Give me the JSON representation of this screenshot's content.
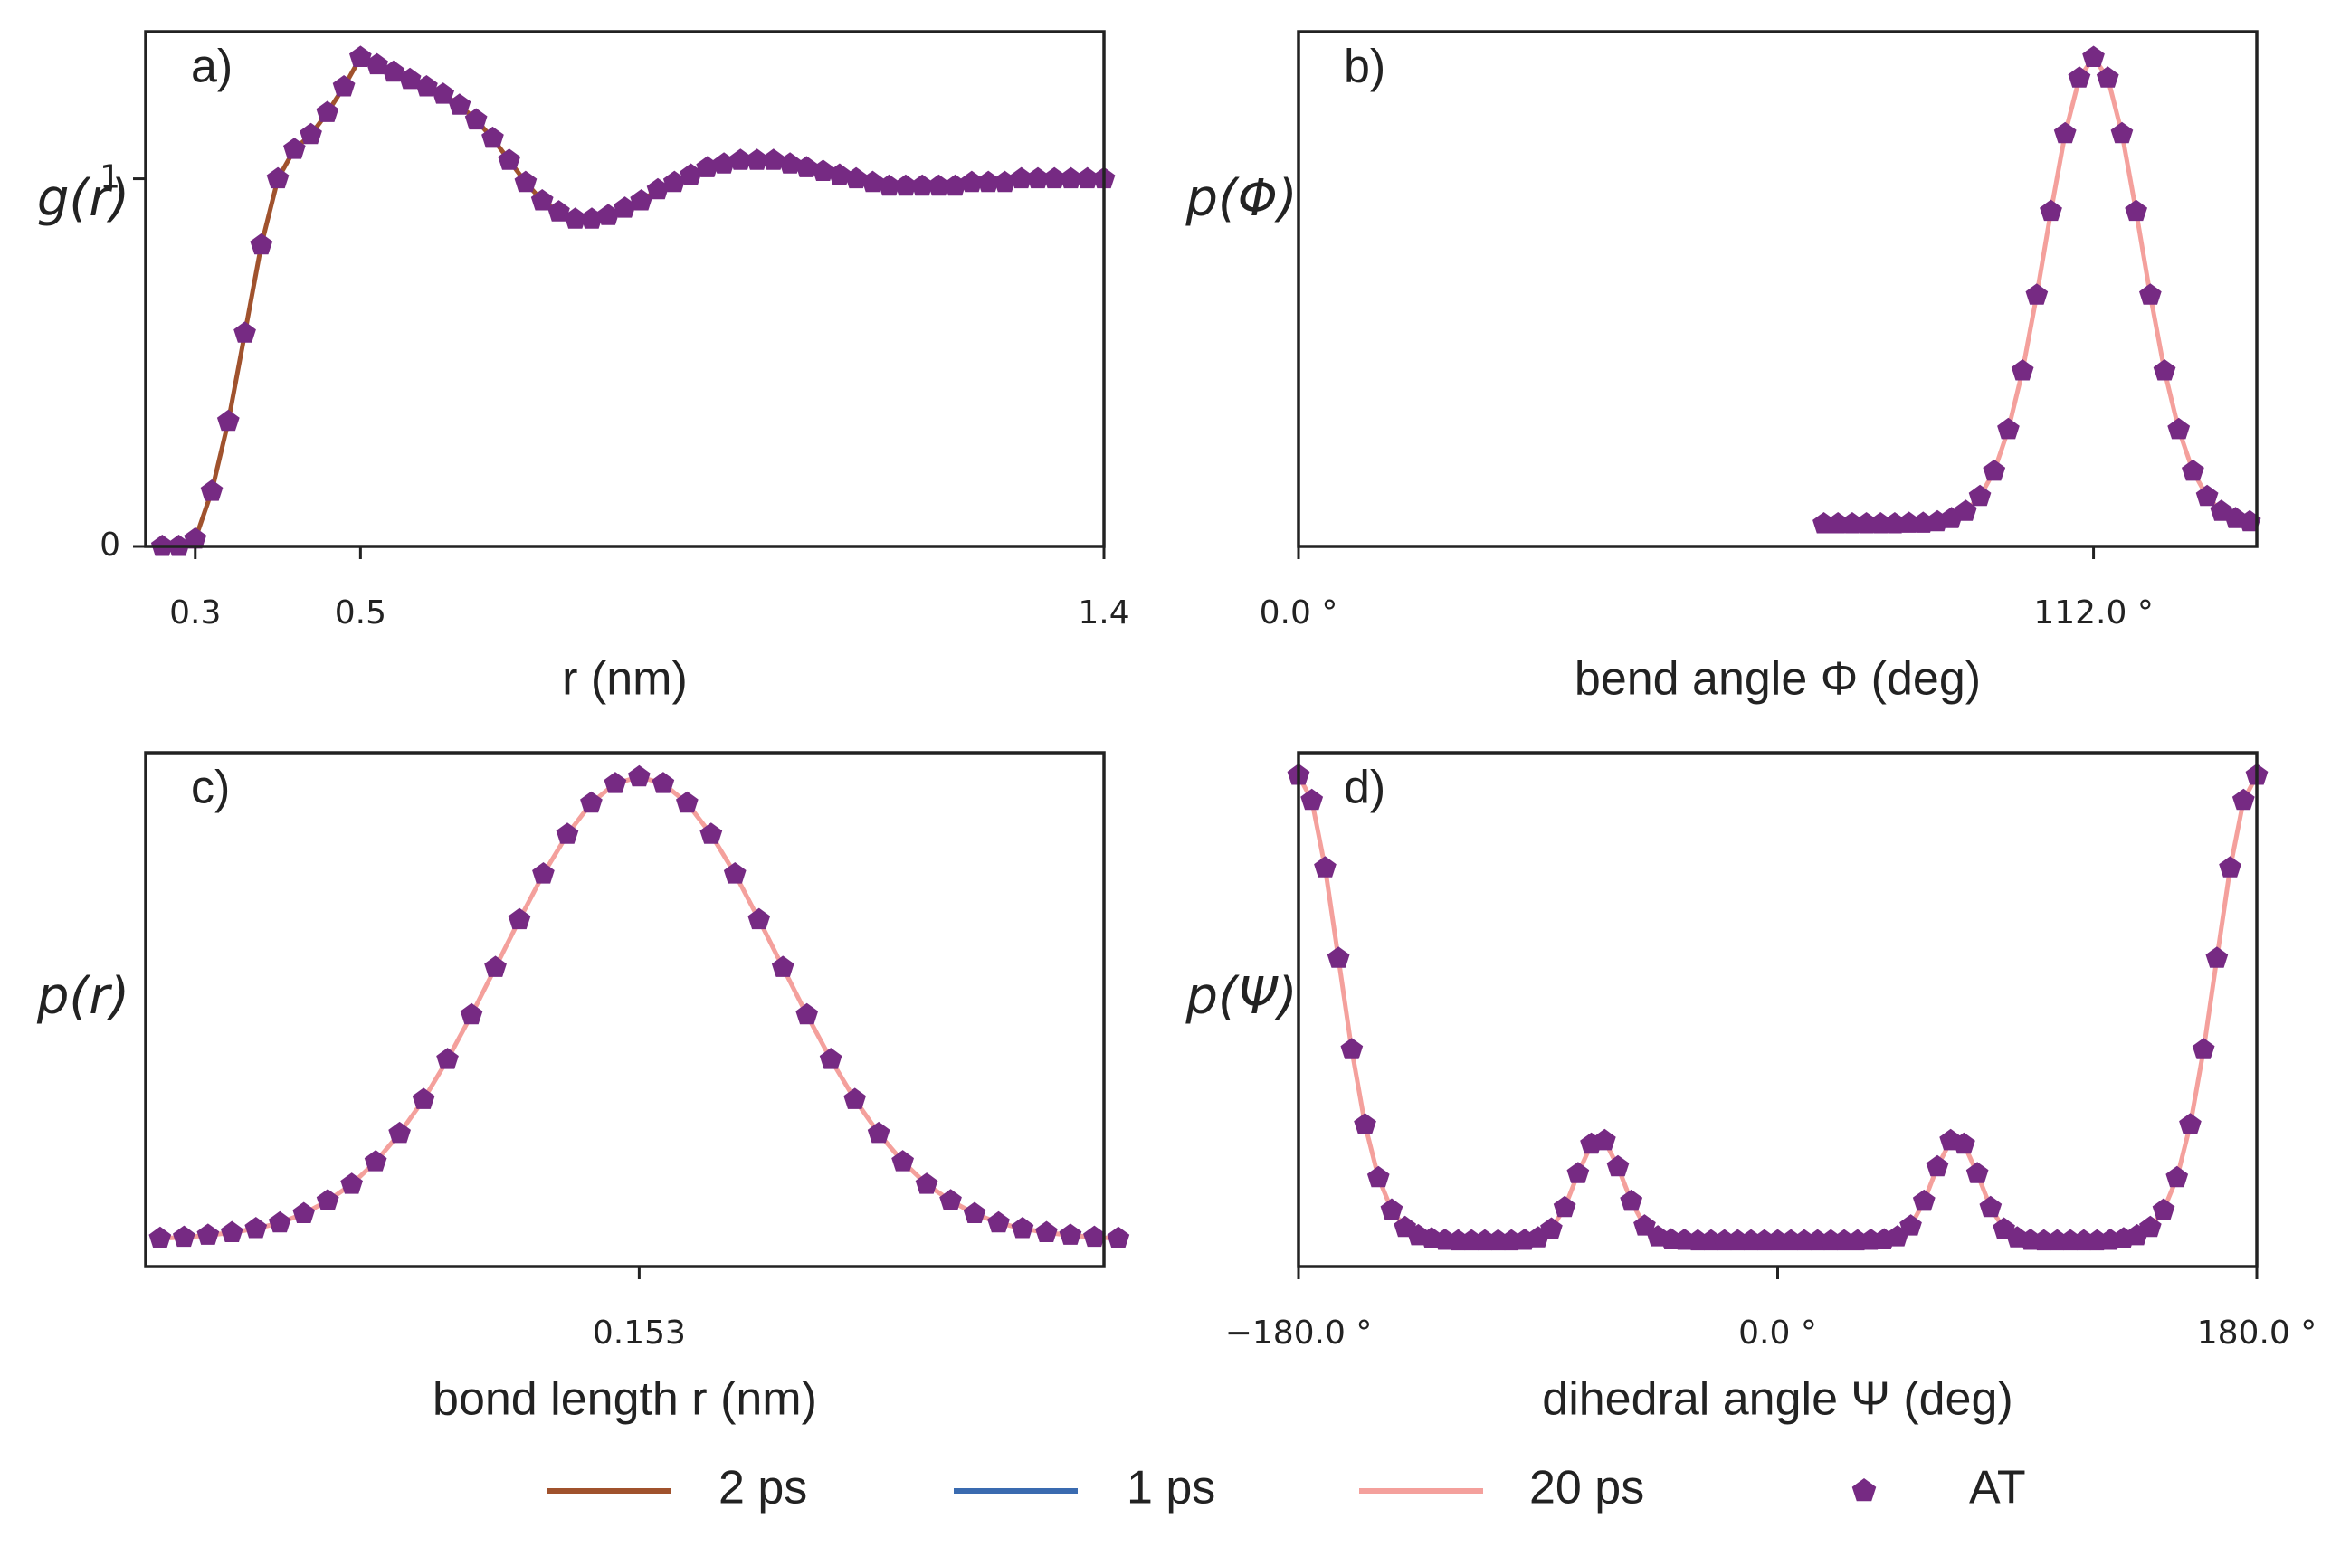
{
  "chart_data": [
    {
      "type": "line",
      "panel_label": "a)",
      "x_label": "r (nm)",
      "y_label": "g(r)",
      "line_color": "#a0522d",
      "xlim": [
        0.24,
        1.4
      ],
      "xticks": [
        0.3,
        0.5,
        1.4
      ],
      "ylim": [
        0,
        1.4
      ],
      "yticks": [
        0,
        1
      ],
      "x": [
        0.26,
        0.28,
        0.3,
        0.32,
        0.34,
        0.36,
        0.38,
        0.4,
        0.42,
        0.44,
        0.46,
        0.48,
        0.5,
        0.52,
        0.54,
        0.56,
        0.58,
        0.6,
        0.62,
        0.64,
        0.66,
        0.68,
        0.7,
        0.72,
        0.74,
        0.76,
        0.78,
        0.8,
        0.82,
        0.84,
        0.86,
        0.88,
        0.9,
        0.92,
        0.94,
        0.96,
        0.98,
        1.0,
        1.02,
        1.04,
        1.06,
        1.08,
        1.1,
        1.12,
        1.14,
        1.16,
        1.18,
        1.2,
        1.22,
        1.24,
        1.26,
        1.28,
        1.3,
        1.32,
        1.34,
        1.36,
        1.38,
        1.4
      ],
      "series": [
        {
          "color": "#762a83",
          "marker": "pentagon",
          "values": [
            0,
            0,
            0.02,
            0.15,
            0.34,
            0.58,
            0.82,
            1.0,
            1.08,
            1.12,
            1.18,
            1.25,
            1.33,
            1.31,
            1.29,
            1.27,
            1.25,
            1.23,
            1.2,
            1.16,
            1.11,
            1.05,
            0.99,
            0.94,
            0.91,
            0.89,
            0.89,
            0.9,
            0.92,
            0.94,
            0.97,
            0.99,
            1.01,
            1.03,
            1.04,
            1.05,
            1.05,
            1.05,
            1.04,
            1.03,
            1.02,
            1.01,
            1.0,
            0.99,
            0.98,
            0.98,
            0.98,
            0.98,
            0.98,
            0.99,
            0.99,
            0.99,
            1.0,
            1.0,
            1.0,
            1.0,
            1.0,
            1.0
          ]
        }
      ]
    },
    {
      "type": "line",
      "panel_label": "b)",
      "x_label": "bend angle Φ (deg)",
      "y_label": "p(Φ)",
      "line_color": "#f4a09c",
      "xlim": [
        0,
        135
      ],
      "xticks": [
        {
          "value": 0,
          "label": "0.0 °"
        },
        {
          "value": 112,
          "label": "112.0 °"
        }
      ],
      "ylim": [
        0,
        1
      ],
      "yticks": [],
      "x": [
        74,
        76,
        78,
        80,
        82,
        84,
        86,
        88,
        90,
        92,
        94,
        96,
        98,
        100,
        102,
        104,
        106,
        108,
        110,
        112,
        114,
        116,
        118,
        120,
        122,
        124,
        126,
        128,
        130,
        132,
        134
      ],
      "series": [
        {
          "color": "#762a83",
          "marker": "pentagon",
          "values": [
            0.044,
            0.044,
            0.044,
            0.044,
            0.044,
            0.044,
            0.045,
            0.045,
            0.048,
            0.054,
            0.068,
            0.097,
            0.146,
            0.227,
            0.341,
            0.488,
            0.651,
            0.802,
            0.91,
            0.95,
            0.91,
            0.802,
            0.651,
            0.488,
            0.341,
            0.227,
            0.146,
            0.097,
            0.068,
            0.054,
            0.048
          ]
        }
      ]
    },
    {
      "type": "line",
      "panel_label": "c)",
      "x_label": "bond length r (nm)",
      "y_label": "p(r)",
      "line_color": "#f4a09c",
      "xlim": [
        0.1427,
        0.1627
      ],
      "xticks": [
        0.153
      ],
      "ylim": [
        0,
        1
      ],
      "yticks": [],
      "x": [
        0.143,
        0.1435,
        0.144,
        0.1445,
        0.145,
        0.1455,
        0.146,
        0.1465,
        0.147,
        0.1475,
        0.148,
        0.1485,
        0.149,
        0.1495,
        0.15,
        0.1505,
        0.151,
        0.1515,
        0.152,
        0.1525,
        0.153,
        0.1535,
        0.154,
        0.1545,
        0.155,
        0.1555,
        0.156,
        0.1565,
        0.157,
        0.1575,
        0.158,
        0.1585,
        0.159,
        0.1595,
        0.16,
        0.1605,
        0.161,
        0.1615,
        0.162,
        0.1625,
        0.163
      ],
      "series": [
        {
          "color": "#762a83",
          "marker": "pentagon",
          "values": [
            0.055,
            0.057,
            0.061,
            0.066,
            0.074,
            0.085,
            0.103,
            0.128,
            0.16,
            0.204,
            0.259,
            0.325,
            0.403,
            0.49,
            0.582,
            0.675,
            0.764,
            0.841,
            0.902,
            0.94,
            0.953,
            0.94,
            0.902,
            0.841,
            0.764,
            0.675,
            0.582,
            0.49,
            0.403,
            0.325,
            0.259,
            0.204,
            0.16,
            0.128,
            0.103,
            0.085,
            0.074,
            0.066,
            0.061,
            0.057,
            0.055
          ]
        }
      ]
    },
    {
      "type": "line",
      "panel_label": "d)",
      "x_label": "dihedral angle Ψ (deg)",
      "y_label": "p(Ψ)",
      "line_color": "#f4a09c",
      "xlim": [
        -180,
        180
      ],
      "xticks": [
        {
          "value": -180,
          "label": "−180.0 °"
        },
        {
          "value": 0,
          "label": "0.0 °"
        },
        {
          "value": 180,
          "label": "180.0 °"
        }
      ],
      "ylim": [
        0,
        1
      ],
      "yticks": [],
      "x": [
        -180,
        -175,
        -170,
        -165,
        -160,
        -155,
        -150,
        -145,
        -140,
        -135,
        -130,
        -125,
        -120,
        -115,
        -110,
        -105,
        -100,
        -95,
        -90,
        -85,
        -80,
        -75,
        -70,
        -65,
        -60,
        -55,
        -50,
        -45,
        -40,
        -35,
        -30,
        -25,
        -20,
        -15,
        -10,
        -5,
        0,
        5,
        10,
        15,
        20,
        25,
        30,
        35,
        40,
        45,
        50,
        55,
        60,
        65,
        70,
        75,
        80,
        85,
        90,
        95,
        100,
        105,
        110,
        115,
        120,
        125,
        130,
        135,
        140,
        145,
        150,
        155,
        160,
        165,
        170,
        175,
        180
      ],
      "series": [
        {
          "color": "#762a83",
          "marker": "pentagon",
          "values": [
            0.956,
            0.907,
            0.776,
            0.6,
            0.422,
            0.276,
            0.173,
            0.11,
            0.076,
            0.06,
            0.054,
            0.051,
            0.05,
            0.05,
            0.05,
            0.05,
            0.05,
            0.051,
            0.056,
            0.073,
            0.115,
            0.181,
            0.238,
            0.245,
            0.194,
            0.127,
            0.079,
            0.058,
            0.052,
            0.051,
            0.05,
            0.05,
            0.05,
            0.05,
            0.05,
            0.05,
            0.05,
            0.05,
            0.05,
            0.05,
            0.05,
            0.05,
            0.05,
            0.051,
            0.052,
            0.058,
            0.079,
            0.127,
            0.194,
            0.245,
            0.238,
            0.181,
            0.115,
            0.073,
            0.056,
            0.051,
            0.05,
            0.05,
            0.05,
            0.05,
            0.05,
            0.051,
            0.054,
            0.06,
            0.076,
            0.11,
            0.173,
            0.276,
            0.422,
            0.6,
            0.776,
            0.907,
            0.956
          ]
        }
      ]
    }
  ],
  "legend": [
    {
      "name": "2 ps",
      "color": "#a0522d"
    },
    {
      "name": "1 ps",
      "color": "#3a6bb0"
    },
    {
      "name": "20 ps",
      "color": "#f4a09c"
    },
    {
      "name": "AT",
      "color": "#762a83",
      "marker": "pentagon"
    }
  ]
}
